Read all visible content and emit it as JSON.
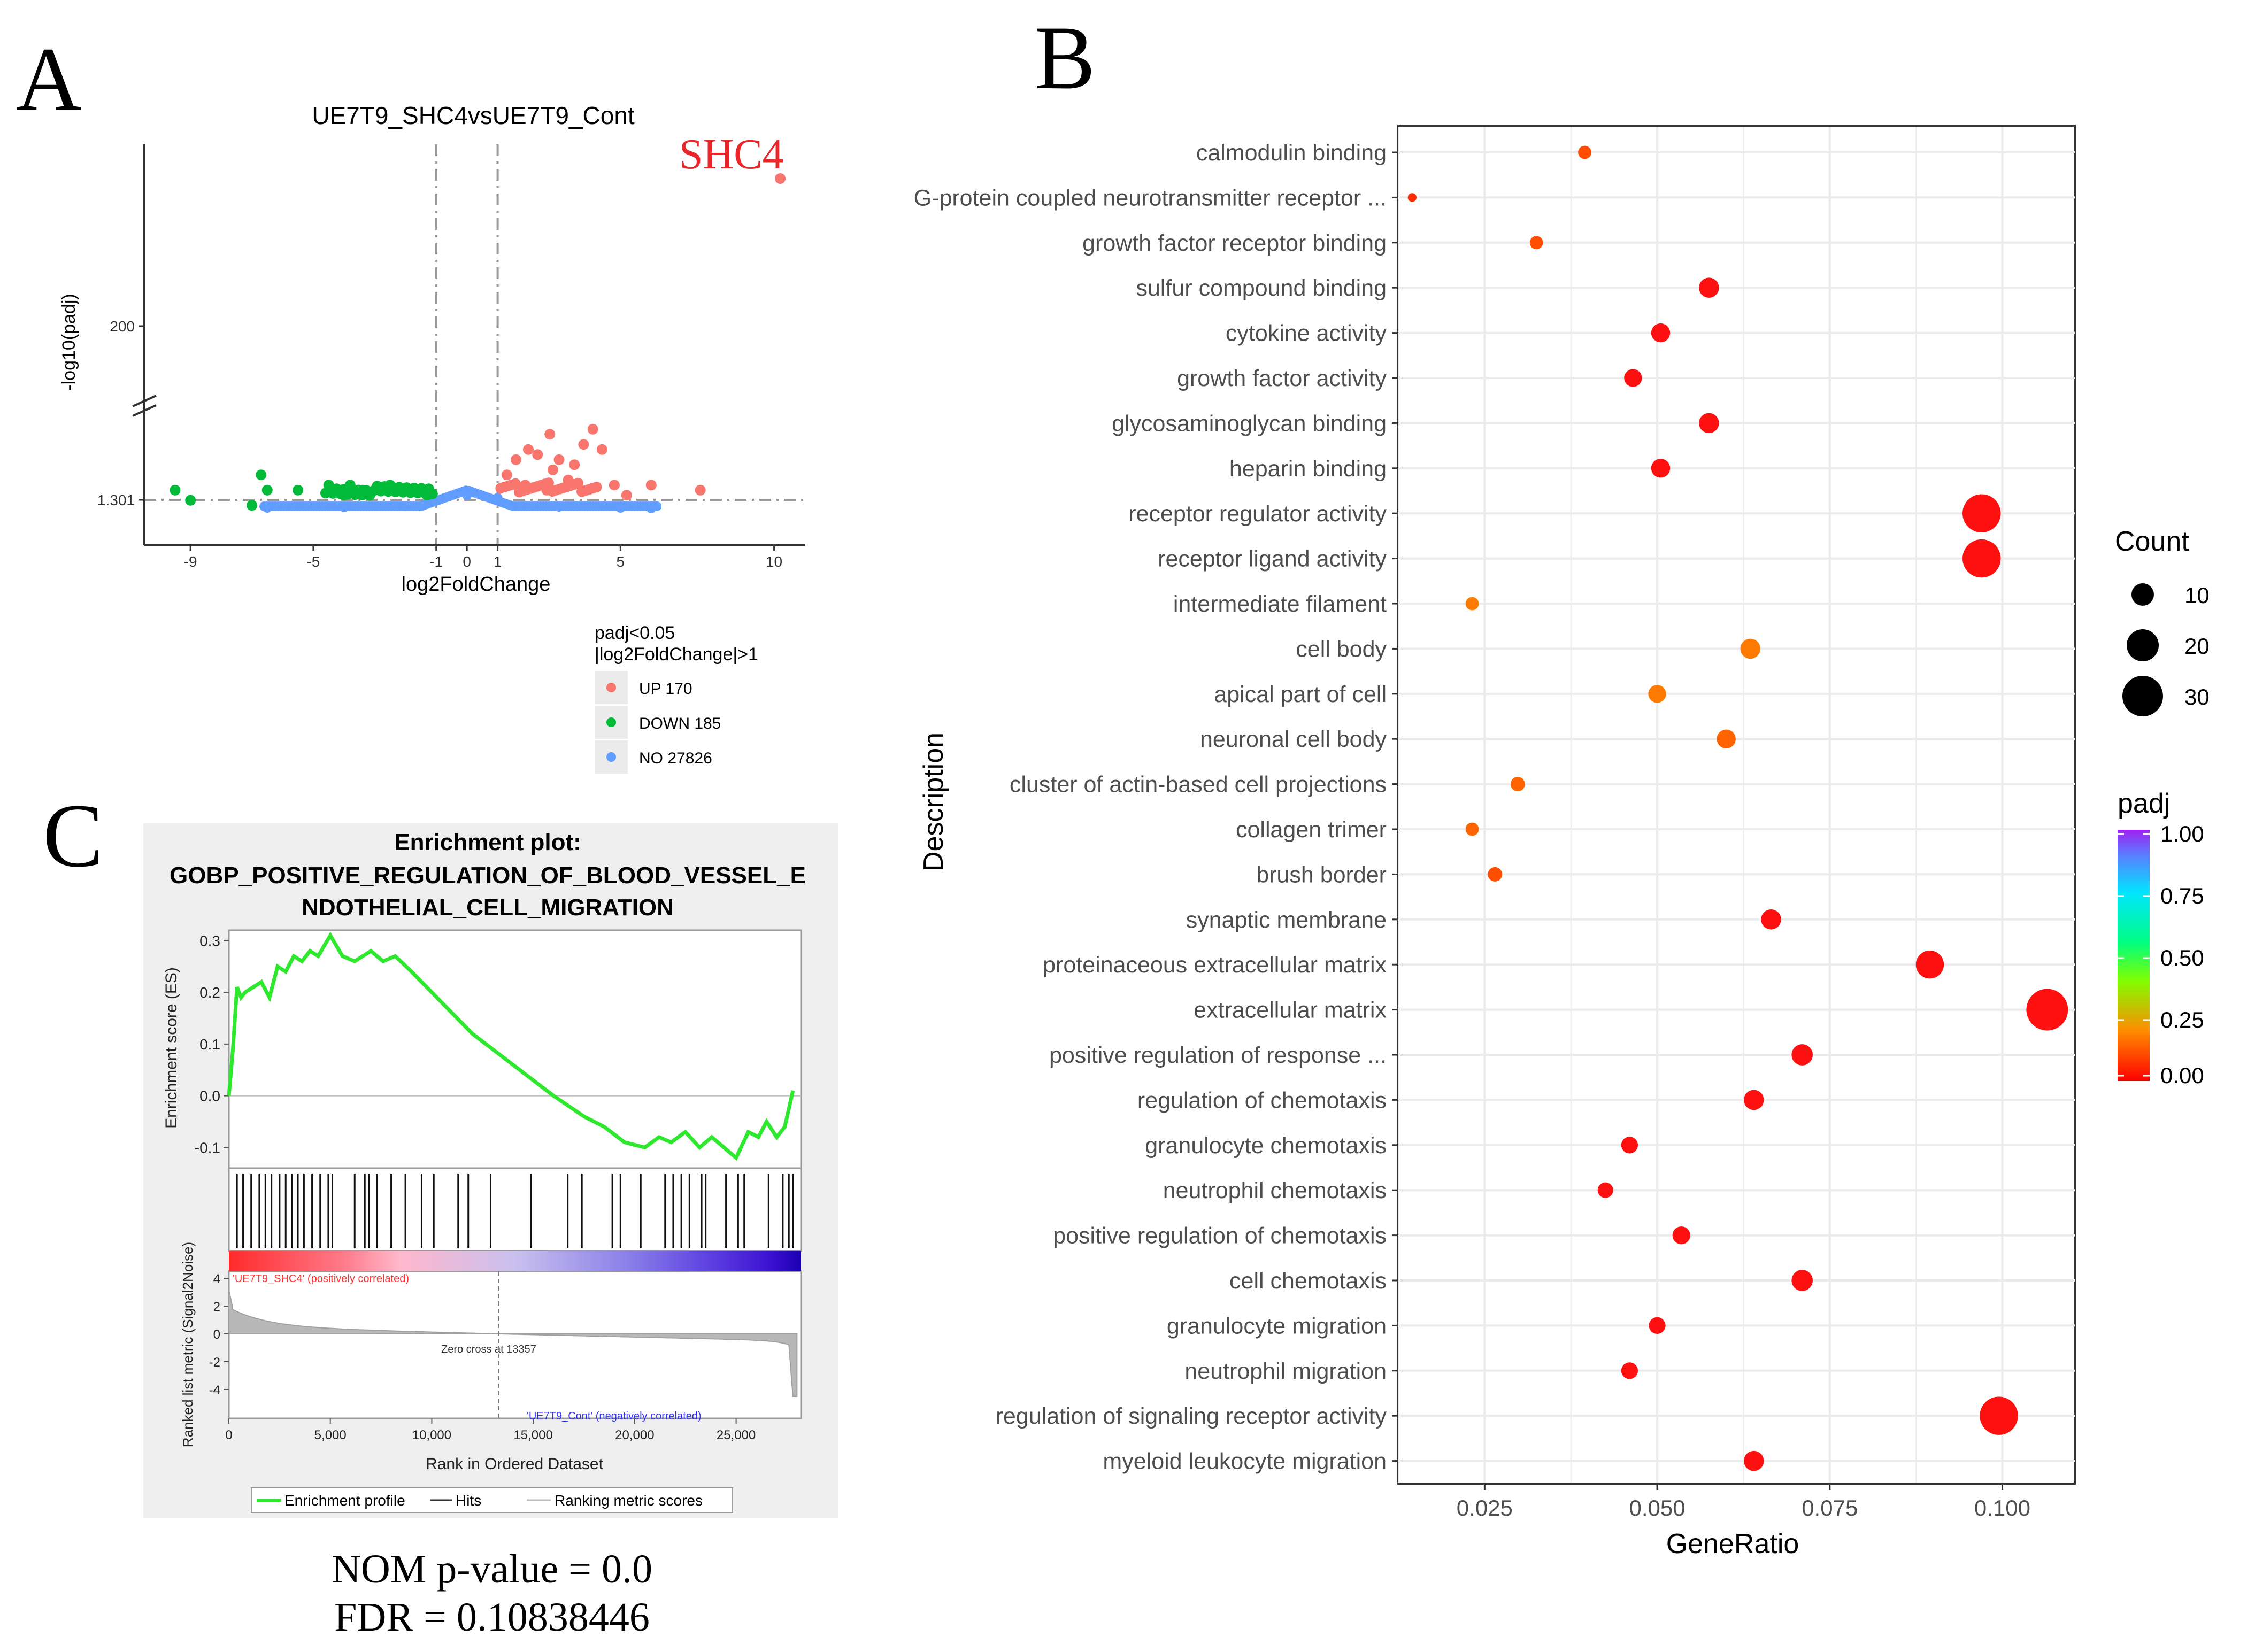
{
  "panel_labels": {
    "a": "A",
    "b": "B",
    "c": "C"
  },
  "volcano": {
    "title": "UE7T9_SHC4vsUE7T9_Cont",
    "highlight_gene": "SHC4",
    "legend_title_line1": "padj<0.05",
    "legend_title_line2": "|log2FoldChange|>1",
    "legend_items": [
      {
        "label": "UP 170",
        "color": "#f8766d"
      },
      {
        "label": "DOWN 185",
        "color": "#00ba38"
      },
      {
        "label": "NO 27826",
        "color": "#619cff"
      }
    ]
  },
  "dotplot": {
    "count_legend_title": "Count",
    "count_legend_values": [
      "10",
      "20",
      "30"
    ],
    "padj_legend_title": "padj",
    "padj_legend_ticks": [
      "1.00",
      "0.75",
      "0.50",
      "0.25",
      "0.00"
    ]
  },
  "gsea": {
    "title_line1": "Enrichment plot:",
    "title_line2": "GOBP_POSITIVE_REGULATION_OF_BLOOD_VESSEL_E",
    "title_line3": "NDOTHELIAL_CELL_MIGRATION",
    "pos_label": "'UE7T9_SHC4' (positively correlated)",
    "neg_label": "'UE7T9_Cont' (negatively correlated)",
    "zero_cross": "Zero cross at 13357",
    "legend": [
      "Enrichment profile",
      "Hits",
      "Ranking metric scores"
    ],
    "nom_pvalue": "NOM p-value = 0.0",
    "fdr": "FDR = 0.10838446"
  },
  "chart_data": [
    {
      "type": "scatter",
      "title": "UE7T9_SHC4vsUE7T9_Cont",
      "xlabel": "log2FoldChange",
      "ylabel": "-log10(padj)",
      "xlim": [
        -10.5,
        11
      ],
      "x_ticks": [
        -9,
        -5,
        -1,
        0,
        1,
        5,
        10
      ],
      "y_ticks": [
        1.301,
        200
      ],
      "thresholds": {
        "x": [
          -1,
          1
        ],
        "y": 1.301
      },
      "series": [
        {
          "name": "UP 170",
          "points": [
            [
              1.3,
              7
            ],
            [
              1.6,
              10
            ],
            [
              2.0,
              12
            ],
            [
              2.3,
              11
            ],
            [
              2.7,
              15
            ],
            [
              3.0,
              10
            ],
            [
              3.5,
              9
            ],
            [
              3.8,
              13
            ],
            [
              4.1,
              16
            ],
            [
              4.4,
              12
            ],
            [
              2.8,
              8
            ],
            [
              3.3,
              6
            ],
            [
              1.9,
              5
            ],
            [
              2.6,
              4
            ],
            [
              4.8,
              5
            ],
            [
              5.2,
              3
            ],
            [
              6.0,
              5
            ],
            [
              7.6,
              4
            ],
            [
              10.2,
              260
            ]
          ]
        },
        {
          "name": "DOWN 185",
          "points": [
            [
              -9.5,
              4
            ],
            [
              -9.0,
              2
            ],
            [
              -6.7,
              7
            ],
            [
              -6.5,
              4
            ],
            [
              -7.0,
              1
            ],
            [
              -5.5,
              4
            ],
            [
              -4.5,
              5
            ],
            [
              -3.8,
              5
            ],
            [
              -3.0,
              4
            ],
            [
              -2.5,
              5
            ],
            [
              -2.0,
              4
            ],
            [
              -1.6,
              4
            ],
            [
              -1.3,
              3
            ],
            [
              -4.0,
              3
            ],
            [
              -3.4,
              4
            ]
          ]
        },
        {
          "name": "NO 27826",
          "points": [
            [
              -6.5,
              0.5
            ],
            [
              -4,
              0.6
            ],
            [
              -2,
              0.8
            ],
            [
              0,
              3
            ],
            [
              1,
              2.5
            ],
            [
              3,
              0.7
            ],
            [
              5,
              0.5
            ],
            [
              6,
              0.4
            ]
          ]
        }
      ]
    },
    {
      "type": "scatter",
      "xlabel": "GeneRatio",
      "ylabel": "Description",
      "xlim": [
        0.0125,
        0.1105
      ],
      "x_ticks": [
        0.025,
        0.05,
        0.075,
        0.1
      ],
      "size_legend": {
        "title": "Count",
        "values": [
          10,
          20,
          30
        ]
      },
      "color_legend": {
        "title": "padj",
        "range": [
          0,
          1
        ]
      },
      "categories": [
        "calmodulin binding",
        "G-protein coupled neurotransmitter receptor ...",
        "growth factor receptor binding",
        "sulfur compound binding",
        "cytokine activity",
        "growth factor activity",
        "glycosaminoglycan binding",
        "heparin binding",
        "receptor regulator activity",
        "receptor ligand activity",
        "intermediate filament",
        "cell body",
        "apical part of cell",
        "neuronal cell body",
        "cluster of actin-based cell projections",
        "collagen trimer",
        "brush border",
        "synaptic membrane",
        "proteinaceous extracellular matrix",
        "extracellular matrix",
        "positive regulation of response ...",
        "regulation of chemotaxis",
        "granulocyte chemotaxis",
        "neutrophil chemotaxis",
        "positive regulation of chemotaxis",
        "cell chemotaxis",
        "granulocyte migration",
        "neutrophil migration",
        "regulation of signaling receptor activity",
        "myeloid leukocyte migration"
      ],
      "gene_ratio": [
        0.0395,
        0.0145,
        0.0325,
        0.0575,
        0.0505,
        0.0465,
        0.0575,
        0.0505,
        0.097,
        0.097,
        0.0232,
        0.0635,
        0.05,
        0.06,
        0.0298,
        0.0232,
        0.0265,
        0.0665,
        0.0895,
        0.1065,
        0.071,
        0.064,
        0.046,
        0.0425,
        0.0535,
        0.071,
        0.05,
        0.046,
        0.0995,
        0.064
      ],
      "count": [
        7,
        3,
        7,
        13,
        12,
        11,
        13,
        12,
        29,
        29,
        7,
        13,
        11,
        12,
        8,
        7,
        8,
        13,
        20,
        32,
        14,
        13,
        10,
        9,
        11,
        14,
        10,
        10,
        29,
        13
      ],
      "padj": [
        0.05,
        0.02,
        0.05,
        0.0,
        0.0,
        0.0,
        0.0,
        0.0,
        0.0,
        0.0,
        0.1,
        0.1,
        0.1,
        0.08,
        0.07,
        0.08,
        0.06,
        0.0,
        0.0,
        0.0,
        0.0,
        0.0,
        0.0,
        0.0,
        0.0,
        0.0,
        0.0,
        0.0,
        0.0,
        0.0
      ]
    },
    {
      "type": "line",
      "title": "Enrichment plot: GOBP_POSITIVE_REGULATION_OF_BLOOD_VESSEL_ENDOTHELIAL_CELL_MIGRATION",
      "xlabel": "Rank in Ordered Dataset",
      "ylabel": "Enrichment score (ES)",
      "ylabel_bottom": "Ranked list metric (Signal2Noise)",
      "xlim": [
        0,
        28200
      ],
      "ylim": [
        -0.14,
        0.32
      ],
      "x_ticks": [
        0,
        5000,
        10000,
        15000,
        20000,
        25000
      ],
      "y_ticks": [
        -0.1,
        0.0,
        0.1,
        0.2,
        0.3
      ],
      "metric_y_ticks": [
        4,
        2,
        0,
        -2,
        -4
      ],
      "x": [
        0,
        200,
        400,
        600,
        800,
        1200,
        1600,
        2000,
        2400,
        2800,
        3200,
        3600,
        4000,
        4400,
        5000,
        5600,
        6200,
        7000,
        7600,
        8200,
        9000,
        10000,
        11000,
        12000,
        13000,
        14000,
        15000,
        16000,
        17500,
        18500,
        19500,
        20500,
        21200,
        21800,
        22500,
        23200,
        23800,
        24400,
        25000,
        25600,
        26100,
        26500,
        27000,
        27400,
        27800
      ],
      "y": [
        0.0,
        0.09,
        0.21,
        0.19,
        0.2,
        0.21,
        0.22,
        0.19,
        0.25,
        0.24,
        0.27,
        0.26,
        0.28,
        0.27,
        0.31,
        0.27,
        0.26,
        0.28,
        0.26,
        0.27,
        0.24,
        0.2,
        0.16,
        0.12,
        0.09,
        0.06,
        0.03,
        0.0,
        -0.04,
        -0.06,
        -0.09,
        -0.1,
        -0.08,
        -0.09,
        -0.07,
        -0.1,
        -0.08,
        -0.1,
        -0.12,
        -0.07,
        -0.08,
        -0.05,
        -0.08,
        -0.06,
        0.01
      ],
      "hits": [
        400,
        700,
        1100,
        1500,
        1800,
        2100,
        2500,
        2800,
        3100,
        3400,
        3700,
        4100,
        4500,
        4900,
        5100,
        6200,
        6700,
        6900,
        7300,
        8000,
        8700,
        9500,
        10100,
        11300,
        11800,
        12900,
        14900,
        16700,
        17400,
        18900,
        19300,
        20300,
        21500,
        21900,
        22300,
        22700,
        23300,
        23500,
        24500,
        25100,
        25400,
        26600,
        27300,
        27600,
        27800
      ]
    }
  ]
}
